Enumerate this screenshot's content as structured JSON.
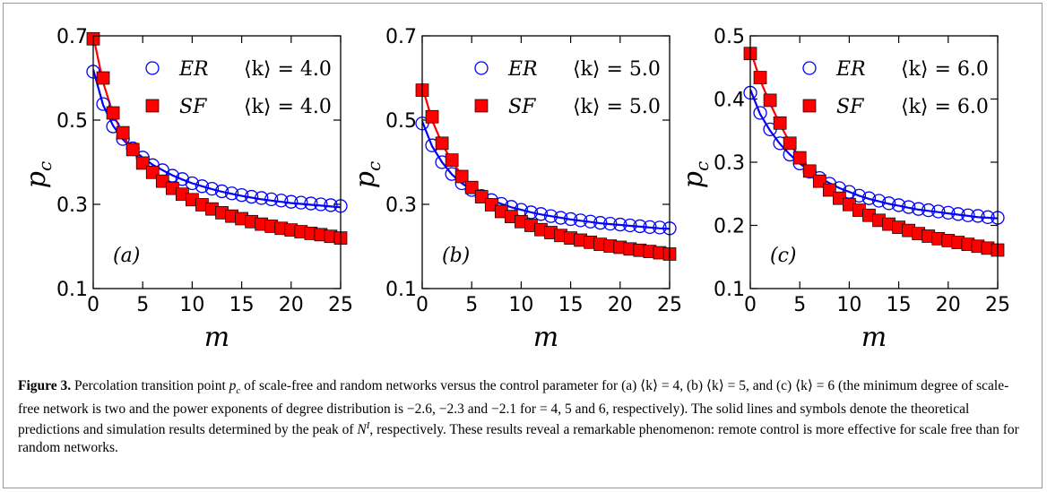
{
  "chart_data": [
    {
      "type": "scatter",
      "panel_label": "(a)",
      "xlabel": "m",
      "ylabel": "p",
      "ylabel_sub": "c",
      "xlim": [
        0,
        25
      ],
      "ylim": [
        0.1,
        0.7
      ],
      "xticks": [
        "0",
        "5",
        "10",
        "15",
        "20",
        "25"
      ],
      "yticks": [
        "0.1",
        "0.3",
        "0.5",
        "0.7"
      ],
      "ytick_values": [
        0.1,
        0.3,
        0.5,
        0.7
      ],
      "legend_position": "top-right",
      "series": [
        {
          "name": "ER  ⟨k⟩ = 4.0",
          "legend_name": "ER",
          "legend_k": "⟨k⟩ = 4.0",
          "marker": "open-circle",
          "color": "#0000ff",
          "x": [
            0,
            1,
            2,
            3,
            4,
            5,
            6,
            7,
            8,
            9,
            10,
            11,
            12,
            13,
            14,
            15,
            16,
            17,
            18,
            19,
            20,
            21,
            22,
            23,
            24,
            25
          ],
          "points": [
            0.615,
            0.538,
            0.485,
            0.455,
            0.433,
            0.411,
            0.393,
            0.381,
            0.368,
            0.36,
            0.35,
            0.343,
            0.337,
            0.331,
            0.326,
            0.322,
            0.318,
            0.315,
            0.312,
            0.309,
            0.306,
            0.304,
            0.302,
            0.3,
            0.298,
            0.296
          ],
          "curve": [
            0.62,
            0.536,
            0.487,
            0.454,
            0.43,
            0.411,
            0.394,
            0.381,
            0.369,
            0.359,
            0.35,
            0.343,
            0.336,
            0.33,
            0.325,
            0.32,
            0.316,
            0.312,
            0.309,
            0.306,
            0.303,
            0.301,
            0.299,
            0.297,
            0.295,
            0.293
          ]
        },
        {
          "name": "SF  ⟨k⟩ = 4.0",
          "legend_name": "SF",
          "legend_k": "⟨k⟩ = 4.0",
          "marker": "filled-square",
          "color": "#ff0000",
          "x": [
            0,
            1,
            2,
            3,
            4,
            5,
            6,
            7,
            8,
            9,
            10,
            11,
            12,
            13,
            14,
            15,
            16,
            17,
            18,
            19,
            20,
            21,
            22,
            23,
            24,
            25
          ],
          "points": [
            0.693,
            0.6,
            0.517,
            0.47,
            0.43,
            0.398,
            0.376,
            0.355,
            0.338,
            0.324,
            0.311,
            0.299,
            0.289,
            0.28,
            0.272,
            0.266,
            0.259,
            0.253,
            0.248,
            0.243,
            0.239,
            0.235,
            0.231,
            0.228,
            0.224,
            0.22
          ],
          "curve": [
            0.7,
            0.59,
            0.515,
            0.465,
            0.425,
            0.397,
            0.374,
            0.355,
            0.338,
            0.324,
            0.311,
            0.3,
            0.29,
            0.281,
            0.273,
            0.266,
            0.259,
            0.253,
            0.248,
            0.243,
            0.238,
            0.234,
            0.23,
            0.226,
            0.222,
            0.218
          ]
        }
      ]
    },
    {
      "type": "scatter",
      "panel_label": "(b)",
      "xlabel": "m",
      "ylabel": "p",
      "ylabel_sub": "c",
      "xlim": [
        0,
        25
      ],
      "ylim": [
        0.1,
        0.7
      ],
      "xticks": [
        "0",
        "5",
        "10",
        "15",
        "20",
        "25"
      ],
      "yticks": [
        "0.1",
        "0.3",
        "0.5",
        "0.7"
      ],
      "ytick_values": [
        0.1,
        0.3,
        0.5,
        0.7
      ],
      "legend_position": "top-right",
      "series": [
        {
          "name": "ER  ⟨k⟩ = 5.0",
          "legend_name": "ER",
          "legend_k": "⟨k⟩ = 5.0",
          "marker": "open-circle",
          "color": "#0000ff",
          "x": [
            0,
            1,
            2,
            3,
            4,
            5,
            6,
            7,
            8,
            9,
            10,
            11,
            12,
            13,
            14,
            15,
            16,
            17,
            18,
            19,
            20,
            21,
            22,
            23,
            24,
            25
          ],
          "points": [
            0.492,
            0.44,
            0.4,
            0.372,
            0.35,
            0.334,
            0.32,
            0.31,
            0.301,
            0.294,
            0.287,
            0.281,
            0.277,
            0.272,
            0.268,
            0.265,
            0.262,
            0.259,
            0.256,
            0.254,
            0.252,
            0.25,
            0.248,
            0.246,
            0.245,
            0.243
          ],
          "curve": [
            0.497,
            0.438,
            0.4,
            0.371,
            0.35,
            0.334,
            0.32,
            0.31,
            0.301,
            0.293,
            0.287,
            0.281,
            0.276,
            0.272,
            0.268,
            0.264,
            0.261,
            0.258,
            0.255,
            0.253,
            0.251,
            0.249,
            0.247,
            0.245,
            0.243,
            0.242
          ]
        },
        {
          "name": "SF  ⟨k⟩ = 5.0",
          "legend_name": "SF",
          "legend_k": "⟨k⟩ = 5.0",
          "marker": "filled-square",
          "color": "#ff0000",
          "x": [
            0,
            1,
            2,
            3,
            4,
            5,
            6,
            7,
            8,
            9,
            10,
            11,
            12,
            13,
            14,
            15,
            16,
            17,
            18,
            19,
            20,
            21,
            22,
            23,
            24,
            25
          ],
          "points": [
            0.571,
            0.508,
            0.445,
            0.405,
            0.366,
            0.34,
            0.318,
            0.299,
            0.283,
            0.271,
            0.259,
            0.25,
            0.24,
            0.233,
            0.226,
            0.22,
            0.215,
            0.21,
            0.205,
            0.201,
            0.198,
            0.194,
            0.191,
            0.188,
            0.185,
            0.182
          ],
          "curve": [
            0.58,
            0.5,
            0.444,
            0.402,
            0.37,
            0.342,
            0.319,
            0.3,
            0.284,
            0.271,
            0.259,
            0.249,
            0.24,
            0.232,
            0.225,
            0.219,
            0.214,
            0.209,
            0.204,
            0.2,
            0.196,
            0.192,
            0.189,
            0.186,
            0.183,
            0.18
          ]
        }
      ]
    },
    {
      "type": "scatter",
      "panel_label": "(c)",
      "xlabel": "m",
      "ylabel": "p",
      "ylabel_sub": "c",
      "xlim": [
        0,
        25
      ],
      "ylim": [
        0.1,
        0.5
      ],
      "xticks": [
        "0",
        "5",
        "10",
        "15",
        "20",
        "25"
      ],
      "yticks": [
        "0.1",
        "0.2",
        "0.3",
        "0.4",
        "0.5"
      ],
      "ytick_values": [
        0.1,
        0.2,
        0.3,
        0.4,
        0.5
      ],
      "legend_position": "top-right",
      "series": [
        {
          "name": "ER  ⟨k⟩ = 6.0",
          "legend_name": "ER",
          "legend_k": "⟨k⟩ = 6.0",
          "marker": "open-circle",
          "color": "#0000ff",
          "x": [
            0,
            1,
            2,
            3,
            4,
            5,
            6,
            7,
            8,
            9,
            10,
            11,
            12,
            13,
            14,
            15,
            16,
            17,
            18,
            19,
            20,
            21,
            22,
            23,
            24,
            25
          ],
          "points": [
            0.41,
            0.378,
            0.352,
            0.33,
            0.312,
            0.298,
            0.285,
            0.275,
            0.266,
            0.259,
            0.253,
            0.247,
            0.243,
            0.239,
            0.235,
            0.232,
            0.229,
            0.226,
            0.224,
            0.222,
            0.22,
            0.218,
            0.216,
            0.215,
            0.213,
            0.212
          ],
          "curve": [
            0.415,
            0.376,
            0.35,
            0.329,
            0.312,
            0.298,
            0.286,
            0.276,
            0.267,
            0.259,
            0.253,
            0.247,
            0.242,
            0.238,
            0.234,
            0.231,
            0.228,
            0.225,
            0.223,
            0.221,
            0.219,
            0.217,
            0.215,
            0.213,
            0.212,
            0.211
          ]
        },
        {
          "name": "SF  ⟨k⟩ = 6.0",
          "legend_name": "SF",
          "legend_k": "⟨k⟩ = 6.0",
          "marker": "filled-square",
          "color": "#ff0000",
          "x": [
            0,
            1,
            2,
            3,
            4,
            5,
            6,
            7,
            8,
            9,
            10,
            11,
            12,
            13,
            14,
            15,
            16,
            17,
            18,
            19,
            20,
            21,
            22,
            23,
            24,
            25
          ],
          "points": [
            0.472,
            0.434,
            0.398,
            0.362,
            0.33,
            0.307,
            0.286,
            0.27,
            0.256,
            0.243,
            0.233,
            0.224,
            0.216,
            0.208,
            0.202,
            0.197,
            0.192,
            0.187,
            0.183,
            0.179,
            0.176,
            0.173,
            0.17,
            0.167,
            0.164,
            0.161
          ],
          "curve": [
            0.478,
            0.43,
            0.393,
            0.36,
            0.331,
            0.306,
            0.286,
            0.269,
            0.255,
            0.243,
            0.233,
            0.224,
            0.216,
            0.209,
            0.203,
            0.197,
            0.192,
            0.187,
            0.183,
            0.179,
            0.175,
            0.172,
            0.169,
            0.166,
            0.163,
            0.16
          ]
        }
      ]
    }
  ],
  "caption": {
    "figure_number": "Figure 3.",
    "pre_pc": " Percolation transition point ",
    "pc_p": "p",
    "pc_sub": "c",
    "post_pc": " of scale-free and random networks versus the control parameter for (a) ⟨k⟩ = 4, (b) ⟨k⟩ = 5, and (c) ⟨k⟩ = 6 (the minimum degree of scale-free network is two and the power exponents of degree distribution is −2.6, −2.3 and −2.1 for = 4, 5 and 6, respectively). The solid lines and symbols denote the theoretical predictions and simulation results determined by the peak of ",
    "ni_n": "N",
    "ni_sup": "I",
    "post_ni": ", respectively. These results reveal a remarkable phenomenon: remote control is more effective for scale free than for random networks."
  }
}
